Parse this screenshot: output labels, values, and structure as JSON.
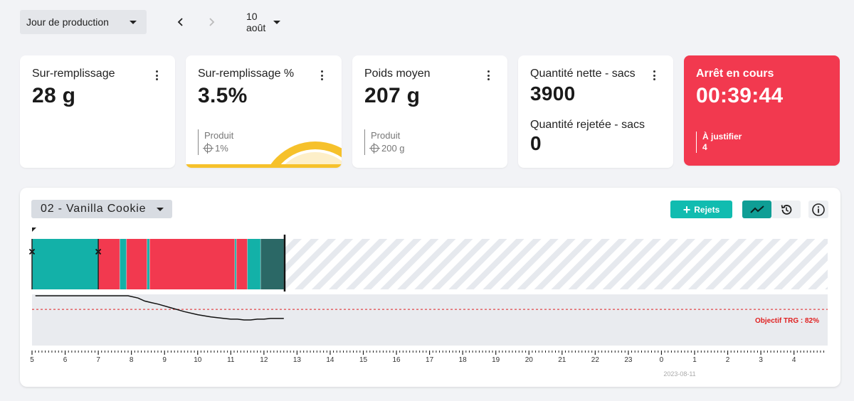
{
  "header": {
    "mode_label": "Jour de production",
    "date_label": "10 août",
    "prev_icon": "chevron-left-icon",
    "next_icon": "chevron-right-icon"
  },
  "cards": {
    "overfill": {
      "title": "Sur-remplissage",
      "value": "28 g"
    },
    "overfill_pct": {
      "title": "Sur-remplissage %",
      "value": "3.5%",
      "sub_label": "Produit",
      "sub_value": "1%",
      "gauge_color": "#f6c12b"
    },
    "avg_weight": {
      "title": "Poids moyen",
      "value": "207 g",
      "sub_label": "Produit",
      "sub_value": "200 g"
    },
    "quantity": {
      "net_title": "Quantité nette - sacs",
      "net_value": "3900",
      "rejected_title": "Quantité rejetée - sacs",
      "rejected_value": "0"
    },
    "stop": {
      "title": "Arrêt en cours",
      "value": "00:39:44",
      "sub_label": "À justifier",
      "sub_value": "4",
      "color": "#f2394f"
    }
  },
  "panel": {
    "product_label": "02 - Vanilla Cookie",
    "rejets_label": "Rejets",
    "objective_label": "Objectif TRG : 82%",
    "axis_date": "2023-08-11",
    "colors": {
      "running": "#13b1a8",
      "stopped": "#f2394f",
      "dark": "#2b6866",
      "accent": "#11bcb0"
    }
  },
  "chart_data": {
    "type": "timeline",
    "hour_ticks": [
      "5",
      "6",
      "7",
      "8",
      "9",
      "10",
      "11",
      "12",
      "13",
      "14",
      "15",
      "16",
      "17",
      "18",
      "19",
      "20",
      "21",
      "22",
      "23",
      "0",
      "1",
      "2",
      "3",
      "4"
    ],
    "state_segments": [
      {
        "start": 5.0,
        "end": 7.0,
        "state": "running"
      },
      {
        "start": 7.0,
        "end": 7.65,
        "state": "stopped"
      },
      {
        "start": 7.65,
        "end": 7.85,
        "state": "running"
      },
      {
        "start": 7.85,
        "end": 8.47,
        "state": "stopped"
      },
      {
        "start": 8.47,
        "end": 8.55,
        "state": "running"
      },
      {
        "start": 8.55,
        "end": 11.12,
        "state": "stopped"
      },
      {
        "start": 11.12,
        "end": 11.17,
        "state": "running"
      },
      {
        "start": 11.17,
        "end": 11.5,
        "state": "stopped"
      },
      {
        "start": 11.5,
        "end": 11.9,
        "state": "running"
      },
      {
        "start": 11.9,
        "end": 12.6,
        "state": "dark"
      }
    ],
    "current_time": 12.62,
    "reject_markers": [
      5.0,
      7.0
    ],
    "trg_curve": {
      "x": [
        5.1,
        5.8,
        6.5,
        7.2,
        7.9,
        8.2,
        8.4,
        8.6,
        8.8,
        9.2,
        9.6,
        10.0,
        10.4,
        10.8,
        11.0,
        11.2,
        11.4,
        11.6,
        11.8,
        12.0,
        12.2,
        12.6
      ],
      "y": [
        100,
        100,
        100,
        100,
        100,
        97,
        93,
        91,
        89,
        84,
        79,
        75,
        72,
        70,
        69,
        69,
        68,
        68,
        69,
        69,
        70,
        70
      ]
    },
    "objective": 82
  }
}
